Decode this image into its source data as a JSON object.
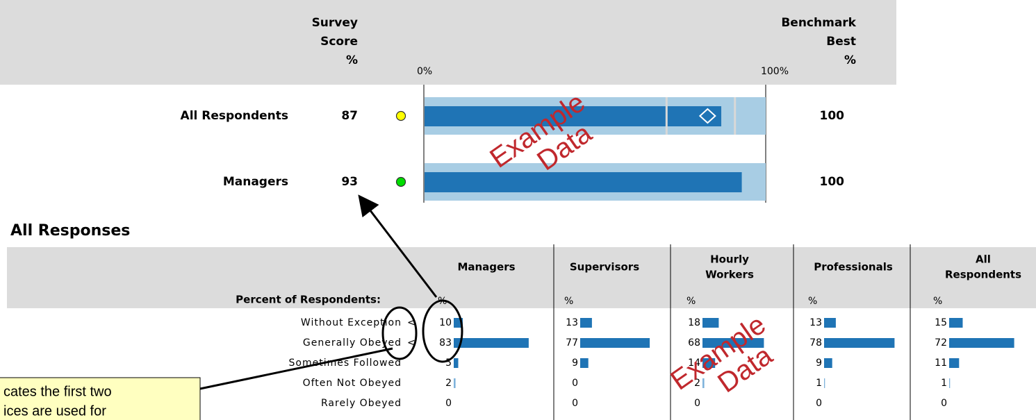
{
  "header": {
    "score_label": [
      "Survey",
      "Score",
      "%"
    ],
    "axis_start": "0%",
    "axis_end": "100%",
    "benchmark_label": [
      "Benchmark",
      "Best",
      "%"
    ],
    "scale": [
      0,
      100
    ]
  },
  "rows": [
    {
      "label": "All Respondents",
      "score": 87,
      "indicator": "#ffff00",
      "benchmark": 100,
      "marker": 83,
      "ranges": [
        71,
        91
      ]
    },
    {
      "label": "Managers",
      "score": 93,
      "indicator": "#00dd00",
      "benchmark": 100
    }
  ],
  "section_title": "All Responses",
  "table": {
    "row_header": "Percent of Respondents:",
    "unit": "%",
    "row_labels": [
      "Without Exception",
      "Generally Obeyed",
      "Sometimes Followed",
      "Often Not Obeyed",
      "Rarely Obeyed"
    ],
    "flags": [
      "<",
      "<"
    ],
    "columns": [
      {
        "name": [
          "Managers"
        ],
        "values": [
          10,
          83,
          5,
          2,
          0
        ]
      },
      {
        "name": [
          "Supervisors"
        ],
        "values": [
          13,
          77,
          9,
          0,
          0
        ]
      },
      {
        "name": [
          "Hourly",
          "Workers"
        ],
        "values": [
          18,
          68,
          14,
          2,
          0
        ]
      },
      {
        "name": [
          "Professionals"
        ],
        "values": [
          13,
          78,
          9,
          1,
          0
        ]
      },
      {
        "name": [
          "All",
          "Respondents"
        ],
        "values": [
          15,
          72,
          11,
          1,
          0
        ]
      }
    ]
  },
  "watermark": [
    "Example",
    "Data"
  ],
  "callout": [
    "cates the first two",
    "ices are used for"
  ]
}
